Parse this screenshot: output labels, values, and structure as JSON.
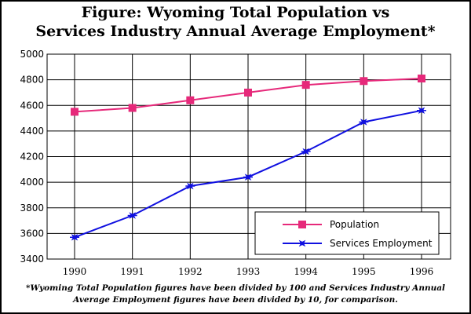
{
  "title_line1": "Figure:  Wyoming Total Population vs",
  "title_line2": "Services Industry Annual Average Employment*",
  "footnote": "*Wyoming Total Population figures have been divided by 100 and Services Industry Annual Average Employment figures have been divided by 10, for comparison.",
  "chart_data": {
    "type": "line",
    "title": "Figure:  Wyoming Total Population vs Services Industry Annual Average Employment*",
    "xlabel": "",
    "ylabel": "",
    "categories": [
      "1990",
      "1991",
      "1992",
      "1993",
      "1994",
      "1995",
      "1996"
    ],
    "ylim": [
      3400,
      5000
    ],
    "yticks": [
      3400,
      3600,
      3800,
      4000,
      4200,
      4400,
      4600,
      4800,
      5000
    ],
    "grid": true,
    "legend_position": "bottom-right",
    "series": [
      {
        "name": "Population",
        "color": "#e6297a",
        "marker": "square",
        "values": [
          4550,
          4580,
          4640,
          4700,
          4760,
          4790,
          4810
        ]
      },
      {
        "name": "Services Employment",
        "color": "#1010e0",
        "marker": "star",
        "values": [
          3570,
          3740,
          3970,
          4040,
          4240,
          4470,
          4560
        ]
      }
    ]
  }
}
